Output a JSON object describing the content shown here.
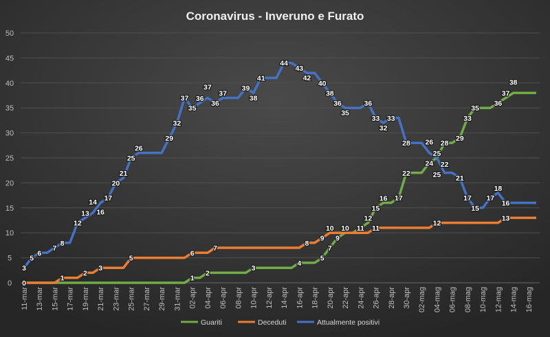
{
  "chart_data": {
    "type": "line",
    "title": "Coronavirus  - Inveruno  e Furato",
    "xlabel": "",
    "ylabel": "",
    "ylim": [
      0,
      50
    ],
    "yticks": [
      0,
      5,
      10,
      15,
      20,
      25,
      30,
      35,
      40,
      45,
      50
    ],
    "grid": true,
    "legend_position": "bottom",
    "x": [
      "11-mar",
      "12-mar",
      "13-mar",
      "14-mar",
      "15-mar",
      "16-mar",
      "17-mar",
      "18-mar",
      "19-mar",
      "20-mar",
      "21-mar",
      "22-mar",
      "23-mar",
      "24-mar",
      "25-mar",
      "26-mar",
      "27-mar",
      "28-mar",
      "29-mar",
      "30-mar",
      "31-mar",
      "01-apr",
      "02-apr",
      "03-apr",
      "04-apr",
      "05-apr",
      "06-apr",
      "07-apr",
      "08-apr",
      "09-apr",
      "10-apr",
      "11-apr",
      "12-apr",
      "13-apr",
      "14-apr",
      "15-apr",
      "16-apr",
      "17-apr",
      "18-apr",
      "19-apr",
      "20-apr",
      "21-apr",
      "22-apr",
      "23-apr",
      "24-apr",
      "25-apr",
      "26-apr",
      "27-apr",
      "28-apr",
      "29-apr",
      "30-apr",
      "01-mag",
      "02-mag",
      "03-mag",
      "04-mag",
      "05-mag",
      "06-mag",
      "07-mag",
      "08-mag",
      "09-mag",
      "10-mag",
      "11-mag",
      "12-mag",
      "13-mag",
      "14-mag",
      "15-mag",
      "16-mag",
      "17-mag"
    ],
    "series": [
      {
        "name": "Guariti",
        "color": "#70ad47",
        "values": [
          0,
          0,
          0,
          0,
          0,
          0,
          0,
          0,
          0,
          0,
          0,
          0,
          0,
          0,
          0,
          0,
          0,
          0,
          0,
          0,
          0,
          0,
          1,
          1,
          2,
          2,
          2,
          2,
          2,
          2,
          3,
          3,
          3,
          3,
          3,
          3,
          4,
          4,
          4,
          5,
          7,
          9,
          10,
          10,
          11,
          12,
          15,
          16,
          16,
          17,
          22,
          22,
          22,
          24,
          25,
          28,
          28,
          29,
          33,
          35,
          35,
          35,
          36,
          37,
          38,
          38,
          38,
          38
        ]
      },
      {
        "name": "Deceduti",
        "color": "#ed7d31",
        "values": [
          0,
          0,
          0,
          0,
          0,
          1,
          1,
          1,
          2,
          2,
          3,
          3,
          3,
          3,
          5,
          5,
          5,
          5,
          5,
          5,
          5,
          5,
          6,
          6,
          6,
          7,
          7,
          7,
          7,
          7,
          7,
          7,
          7,
          7,
          7,
          7,
          7,
          8,
          8,
          9,
          10,
          10,
          10,
          10,
          10,
          10,
          11,
          11,
          11,
          11,
          11,
          11,
          11,
          11,
          12,
          12,
          12,
          12,
          12,
          12,
          12,
          12,
          12,
          13,
          13,
          13,
          13,
          13
        ]
      },
      {
        "name": "Attualmente positivi",
        "color": "#4472c4",
        "values": [
          3,
          5,
          6,
          6,
          7,
          8,
          8,
          12,
          13,
          14,
          16,
          17,
          20,
          21,
          25,
          26,
          26,
          26,
          26,
          29,
          32,
          37,
          35,
          36,
          37,
          36,
          37,
          37,
          37,
          39,
          38,
          41,
          41,
          41,
          44,
          44,
          43,
          42,
          42,
          40,
          38,
          36,
          35,
          35,
          35,
          36,
          33,
          32,
          33,
          33,
          28,
          28,
          28,
          26,
          25,
          22,
          22,
          21,
          17,
          15,
          15,
          17,
          18,
          16,
          16,
          16,
          16,
          16
        ]
      }
    ]
  }
}
